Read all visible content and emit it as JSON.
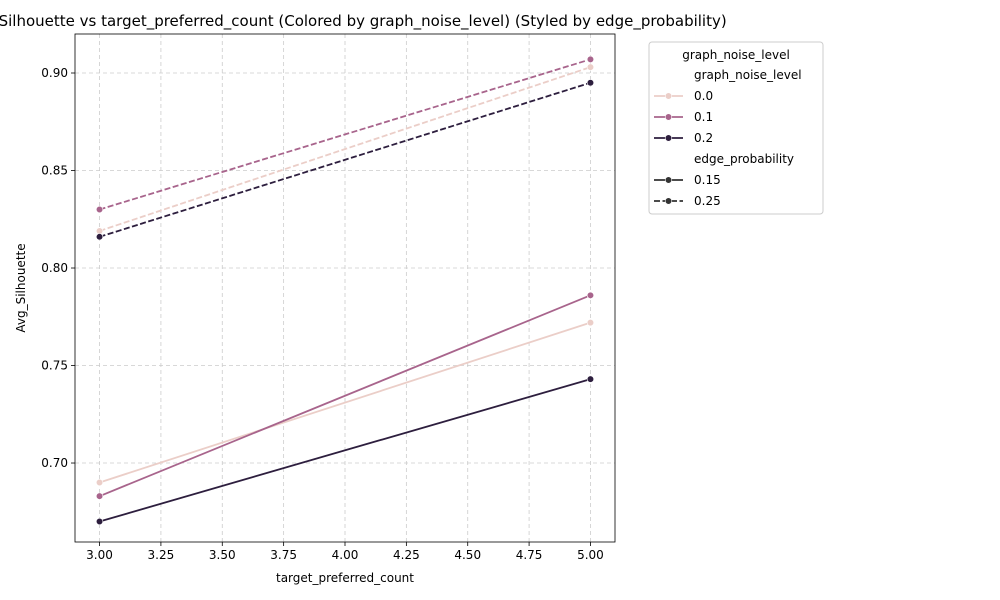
{
  "chart_data": {
    "type": "line",
    "title": "Avg_Silhouette vs target_preferred_count (Colored by graph_noise_level) (Styled by edge_probability)",
    "xlabel": "target_preferred_count",
    "ylabel": "Avg_Silhouette",
    "xlim": [
      2.9,
      5.1
    ],
    "ylim": [
      0.6595,
      0.92
    ],
    "x_ticks": [
      "3.00",
      "3.25",
      "3.50",
      "3.75",
      "4.00",
      "4.25",
      "4.50",
      "4.75",
      "5.00"
    ],
    "y_ticks": [
      "0.70",
      "0.75",
      "0.80",
      "0.85",
      "0.90"
    ],
    "grid": true,
    "legend": {
      "placement": "outside-right",
      "title": "graph_noise_level",
      "hue_header": "graph_noise_level",
      "hue_entries": [
        {
          "label": "0.0",
          "color": "#ebcec8"
        },
        {
          "label": "0.1",
          "color": "#a8648c"
        },
        {
          "label": "0.2",
          "color": "#2d1e3e"
        }
      ],
      "style_header": "edge_probability",
      "style_entries": [
        {
          "label": "0.15",
          "dash": "solid"
        },
        {
          "label": "0.25",
          "dash": "dashed"
        }
      ]
    },
    "series": [
      {
        "graph_noise_level": "0.0",
        "edge_probability": "0.15",
        "color": "#ebcec8",
        "dash": "solid",
        "x": [
          3.0,
          5.0
        ],
        "y": [
          0.69,
          0.772
        ]
      },
      {
        "graph_noise_level": "0.1",
        "edge_probability": "0.15",
        "color": "#a8648c",
        "dash": "solid",
        "x": [
          3.0,
          5.0
        ],
        "y": [
          0.683,
          0.786
        ]
      },
      {
        "graph_noise_level": "0.2",
        "edge_probability": "0.15",
        "color": "#2d1e3e",
        "dash": "solid",
        "x": [
          3.0,
          5.0
        ],
        "y": [
          0.67,
          0.743
        ]
      },
      {
        "graph_noise_level": "0.0",
        "edge_probability": "0.25",
        "color": "#ebcec8",
        "dash": "dashed",
        "x": [
          3.0,
          5.0
        ],
        "y": [
          0.819,
          0.903
        ]
      },
      {
        "graph_noise_level": "0.1",
        "edge_probability": "0.25",
        "color": "#a8648c",
        "dash": "dashed",
        "x": [
          3.0,
          5.0
        ],
        "y": [
          0.83,
          0.907
        ]
      },
      {
        "graph_noise_level": "0.2",
        "edge_probability": "0.25",
        "color": "#2d1e3e",
        "dash": "dashed",
        "x": [
          3.0,
          5.0
        ],
        "y": [
          0.816,
          0.895
        ]
      }
    ]
  }
}
